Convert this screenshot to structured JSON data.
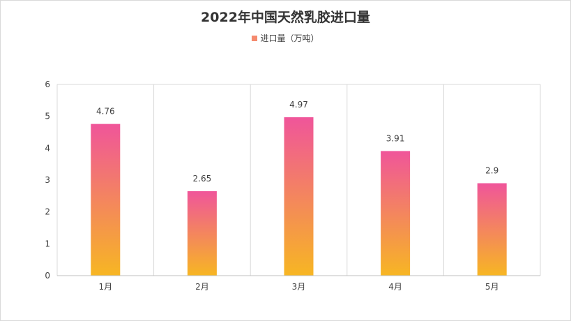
{
  "chart_data": {
    "type": "bar",
    "title": "2022年中国天然乳胶进口量",
    "categories": [
      "1月",
      "2月",
      "3月",
      "4月",
      "5月"
    ],
    "series": [
      {
        "name": "进口量（万吨）",
        "values": [
          4.76,
          2.65,
          4.97,
          3.91,
          2.9
        ]
      }
    ],
    "data_labels": [
      "4.76",
      "2.65",
      "4.97",
      "3.91",
      "2.9"
    ],
    "ylim": [
      0,
      6
    ],
    "yticks": [
      "0",
      "1",
      "2",
      "3",
      "4",
      "5",
      "6"
    ],
    "grid": "vertical-category-separators",
    "legend_position": "top",
    "colors": {
      "gradient_top": "#f0559a",
      "gradient_bottom": "#f7b623",
      "axis": "#bfbfbf",
      "grid": "#d9d9d9",
      "legend_swatch": "#f58a6e"
    }
  }
}
